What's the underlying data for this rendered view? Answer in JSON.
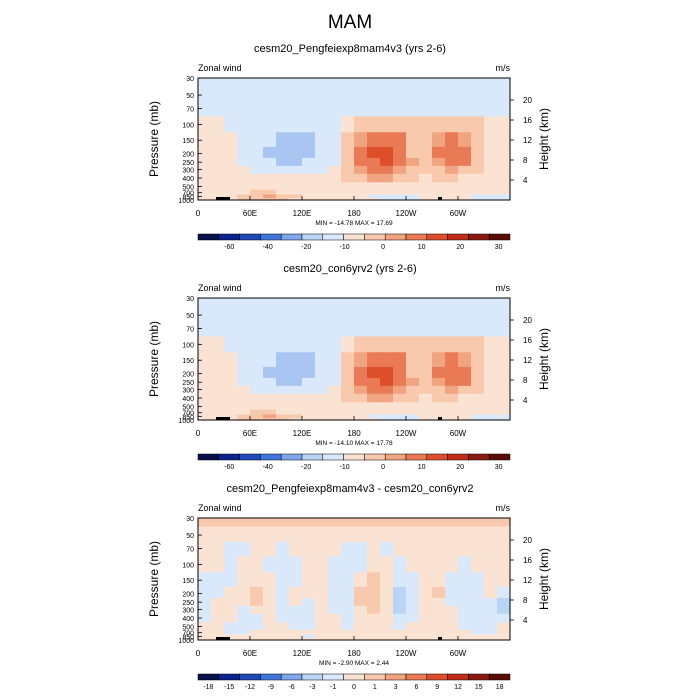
{
  "page_title": "MAM",
  "colors": {
    "palette": [
      "#08104a",
      "#0c238c",
      "#1f4bb8",
      "#3f76dc",
      "#7ea6ea",
      "#b9d4f5",
      "#d9e9fb",
      "#fbe3d3",
      "#f8c9ad",
      "#f0a47f",
      "#e97a55",
      "#df4e2b",
      "#bf2d17",
      "#8a1a0e",
      "#5a0c06"
    ]
  },
  "chart_data": [
    {
      "type": "heatmap",
      "title": "cesm20_Pengfeiexp8mam4v3 (yrs 2-6)",
      "left_label": "Zonal wind",
      "right_label": "m/s",
      "ylabel": "Pressure (mb)",
      "ylabel_right": "Height (km)",
      "x_ticks": [
        "0",
        "60E",
        "120E",
        "180",
        "120W",
        "60W"
      ],
      "y_ticks": [
        "30",
        "50",
        "70",
        "100",
        "150",
        "200",
        "250",
        "300",
        "400",
        "500",
        "700",
        "850",
        "1000"
      ],
      "height_ticks": [
        "20",
        "16",
        "12",
        "8",
        "4"
      ],
      "stats": "MIN = -14.78  MAX =  17.69",
      "colorbar_labels": [
        "-60",
        "-40",
        "-20",
        "-10",
        "0",
        "10",
        "20",
        "30"
      ],
      "field": [
        [
          -3,
          -3,
          -3,
          -3,
          -3,
          -3,
          -3,
          -3,
          -3,
          -3,
          -3,
          -3,
          -3,
          -3,
          -3,
          -3,
          -3,
          -3,
          -3,
          -3,
          -3,
          -3,
          -3,
          -3
        ],
        [
          -2,
          -2,
          -2,
          -2,
          -2,
          -2,
          -2,
          -2,
          -2,
          -2,
          -2,
          -2,
          -2,
          -2,
          -2,
          -2,
          -2,
          -2,
          -2,
          -2,
          -2,
          -2,
          -2,
          -2
        ],
        [
          -2,
          -2,
          -2,
          -2,
          -2,
          -2,
          -2,
          -2,
          -2,
          -2,
          -2,
          -2,
          -2,
          -2,
          -2,
          -2,
          -2,
          -2,
          -2,
          -2,
          -2,
          -2,
          -2,
          -2
        ],
        [
          2,
          2,
          -2,
          -2,
          -2,
          -2,
          -2,
          -3,
          -3,
          -3,
          -2,
          3,
          5,
          6,
          6,
          5,
          4,
          4,
          4,
          4,
          5,
          4,
          2,
          2
        ],
        [
          2,
          3,
          1,
          -2,
          -2,
          -4,
          -6,
          -6,
          -5,
          -3,
          -2,
          5,
          9,
          11,
          12,
          11,
          6,
          5,
          8,
          10,
          9,
          5,
          3,
          2
        ],
        [
          2,
          2,
          1,
          -2,
          -2,
          -5,
          -7,
          -7,
          -5,
          -3,
          -2,
          6,
          11,
          13,
          14,
          12,
          6,
          5,
          10,
          12,
          11,
          6,
          3,
          2
        ],
        [
          2,
          3,
          2,
          -2,
          -2,
          -4,
          -6,
          -5,
          -4,
          -3,
          -1,
          6,
          10,
          12,
          13,
          11,
          7,
          5,
          9,
          11,
          10,
          5,
          2,
          2
        ],
        [
          2,
          2,
          2,
          2,
          -1,
          -2,
          -3,
          -3,
          -2,
          -1,
          3,
          6,
          9,
          10,
          10,
          9,
          6,
          4,
          6,
          7,
          6,
          4,
          2,
          2
        ],
        [
          2,
          2,
          2,
          2,
          2,
          2,
          2,
          2,
          2,
          2,
          3,
          5,
          6,
          7,
          7,
          6,
          4,
          3,
          4,
          4,
          3,
          2,
          2,
          2
        ],
        [
          2,
          2,
          2,
          3,
          3,
          3,
          3,
          3,
          3,
          2,
          2,
          3,
          3,
          3,
          3,
          3,
          3,
          2,
          2,
          2,
          2,
          2,
          2,
          2
        ],
        [
          2,
          2,
          2,
          3,
          4,
          4,
          3,
          3,
          3,
          2,
          2,
          2,
          2,
          2,
          2,
          2,
          2,
          2,
          2,
          2,
          2,
          2,
          2,
          2
        ],
        [
          2,
          2,
          3,
          5,
          6,
          7,
          5,
          4,
          3,
          2,
          2,
          2,
          2,
          -2,
          -2,
          -2,
          -2,
          2,
          2,
          2,
          2,
          -2,
          -2,
          -2
        ],
        [
          3,
          3,
          3,
          4,
          6,
          6,
          5,
          3,
          2,
          2,
          2,
          2,
          2,
          2,
          -2,
          -2,
          -2,
          2,
          2,
          2,
          2,
          -2,
          -2,
          -2
        ]
      ]
    },
    {
      "type": "heatmap",
      "title": "cesm20_con6yrv2 (yrs 2-6)",
      "left_label": "Zonal wind",
      "right_label": "m/s",
      "ylabel": "Pressure (mb)",
      "ylabel_right": "Height (km)",
      "x_ticks": [
        "0",
        "60E",
        "120E",
        "180",
        "120W",
        "60W"
      ],
      "y_ticks": [
        "30",
        "50",
        "70",
        "100",
        "150",
        "200",
        "250",
        "300",
        "400",
        "500",
        "700",
        "850",
        "1000"
      ],
      "height_ticks": [
        "20",
        "16",
        "12",
        "8",
        "4"
      ],
      "stats": "MIN = -14.10  MAX =  17.78",
      "colorbar_labels": [
        "-60",
        "-40",
        "-20",
        "-10",
        "0",
        "10",
        "20",
        "30"
      ],
      "field": [
        [
          -3,
          -3,
          -3,
          -3,
          -3,
          -3,
          -3,
          -3,
          -3,
          -3,
          -3,
          -3,
          -3,
          -3,
          -3,
          -3,
          -3,
          -3,
          -3,
          -3,
          -3,
          -3,
          -3,
          -3
        ],
        [
          -2,
          -2,
          -2,
          -2,
          -2,
          -2,
          -2,
          -2,
          -2,
          -2,
          -2,
          -2,
          -2,
          -2,
          -2,
          -2,
          -2,
          -2,
          -2,
          -2,
          -2,
          -2,
          -2,
          -2
        ],
        [
          -2,
          -2,
          -2,
          -2,
          -2,
          -2,
          -2,
          -2,
          -2,
          -2,
          -2,
          -2,
          -2,
          -2,
          -2,
          -2,
          -2,
          -2,
          -2,
          -2,
          -2,
          -2,
          -2,
          -2
        ],
        [
          2,
          2,
          -2,
          -2,
          -2,
          -2,
          -2,
          -3,
          -3,
          -3,
          -2,
          3,
          5,
          6,
          6,
          5,
          4,
          4,
          4,
          4,
          5,
          4,
          2,
          2
        ],
        [
          2,
          3,
          1,
          -2,
          -2,
          -4,
          -6,
          -6,
          -5,
          -3,
          -2,
          5,
          9,
          11,
          12,
          11,
          6,
          5,
          8,
          10,
          9,
          5,
          3,
          2
        ],
        [
          2,
          2,
          1,
          -2,
          -2,
          -5,
          -7,
          -7,
          -5,
          -3,
          -2,
          6,
          11,
          14,
          15,
          12,
          6,
          5,
          10,
          12,
          11,
          6,
          3,
          2
        ],
        [
          2,
          3,
          2,
          -2,
          -2,
          -4,
          -6,
          -5,
          -4,
          -3,
          -1,
          6,
          10,
          12,
          13,
          11,
          7,
          5,
          9,
          11,
          10,
          5,
          2,
          2
        ],
        [
          2,
          2,
          2,
          2,
          -1,
          -2,
          -3,
          -3,
          -2,
          -1,
          3,
          6,
          9,
          10,
          10,
          9,
          6,
          4,
          6,
          7,
          6,
          4,
          2,
          2
        ],
        [
          2,
          2,
          2,
          2,
          2,
          2,
          2,
          2,
          2,
          2,
          3,
          5,
          6,
          7,
          7,
          6,
          4,
          3,
          4,
          4,
          3,
          2,
          2,
          2
        ],
        [
          2,
          2,
          2,
          3,
          3,
          3,
          3,
          3,
          3,
          2,
          2,
          3,
          3,
          3,
          3,
          3,
          3,
          2,
          2,
          2,
          2,
          2,
          2,
          2
        ],
        [
          2,
          2,
          2,
          3,
          4,
          4,
          3,
          3,
          3,
          2,
          2,
          2,
          2,
          2,
          2,
          2,
          2,
          2,
          2,
          2,
          2,
          2,
          2,
          2
        ],
        [
          2,
          2,
          3,
          5,
          6,
          7,
          5,
          4,
          3,
          2,
          2,
          2,
          2,
          -2,
          -2,
          -2,
          -2,
          2,
          2,
          2,
          2,
          -2,
          -2,
          -2
        ],
        [
          3,
          3,
          3,
          4,
          6,
          6,
          5,
          3,
          2,
          2,
          2,
          2,
          2,
          2,
          -2,
          -2,
          -2,
          2,
          2,
          2,
          2,
          -2,
          -2,
          -2
        ]
      ]
    },
    {
      "type": "heatmap",
      "title": "cesm20_Pengfeiexp8mam4v3 - cesm20_con6yrv2",
      "left_label": "Zonal wind",
      "right_label": "m/s",
      "ylabel": "Pressure (mb)",
      "ylabel_right": "Height (km)",
      "x_ticks": [
        "0",
        "60E",
        "120E",
        "180",
        "120W",
        "60W"
      ],
      "y_ticks": [
        "30",
        "50",
        "70",
        "100",
        "150",
        "200",
        "250",
        "300",
        "400",
        "500",
        "700",
        "850",
        "1000"
      ],
      "height_ticks": [
        "20",
        "16",
        "12",
        "8",
        "4"
      ],
      "stats": "MIN =  -2.90  MAX =   2.44",
      "colorbar_labels": [
        "-18",
        "-15",
        "-12",
        "-9",
        "-6",
        "-3",
        "-1",
        "0",
        "1",
        "3",
        "6",
        "9",
        "12",
        "15",
        "18"
      ],
      "field": [
        [
          1,
          1,
          1,
          1,
          1,
          1,
          1,
          1,
          1,
          1,
          1,
          1,
          1,
          1,
          1,
          1,
          1,
          1,
          1,
          1,
          1,
          1,
          1,
          1
        ],
        [
          0.4,
          0.4,
          0.4,
          0.4,
          0.4,
          0.4,
          0.4,
          0.4,
          0.4,
          0.4,
          0.4,
          0.4,
          0.4,
          0.4,
          0.4,
          0.4,
          0.4,
          0.4,
          0.4,
          0.4,
          0.4,
          0.4,
          0.4,
          0.4
        ],
        [
          0.4,
          0.4,
          -0.4,
          -0.4,
          0.4,
          0.4,
          -0.4,
          0.4,
          0.4,
          0.4,
          0.4,
          -0.4,
          -0.4,
          0.4,
          -0.4,
          0.4,
          0.4,
          0.4,
          0.4,
          0.4,
          0.4,
          0.4,
          0.4,
          0.4
        ],
        [
          0.4,
          0.4,
          -0.4,
          0.4,
          0.4,
          -0.4,
          -0.4,
          -0.4,
          0.4,
          0.4,
          -0.4,
          -0.4,
          -0.4,
          0.4,
          0.4,
          -0.4,
          0.4,
          0.4,
          0.4,
          0.4,
          -0.4,
          0.4,
          0.4,
          0.4
        ],
        [
          -0.4,
          -0.4,
          -0.4,
          0.4,
          0.4,
          0.4,
          -0.4,
          -0.4,
          0.4,
          0.4,
          -0.4,
          -0.4,
          0.4,
          1.2,
          0.4,
          -0.4,
          -0.4,
          0.4,
          0.4,
          -0.4,
          -0.4,
          -0.4,
          0.4,
          0.4
        ],
        [
          -0.4,
          -0.4,
          0.4,
          0.4,
          1.2,
          0.4,
          -0.4,
          0.4,
          0.4,
          0.4,
          -0.4,
          -0.4,
          1.2,
          1.5,
          0.4,
          -1.2,
          -0.4,
          0.4,
          1.2,
          -0.4,
          -0.4,
          -0.4,
          0.4,
          -0.4
        ],
        [
          -0.4,
          0.4,
          0.4,
          0.4,
          1.2,
          0.4,
          -0.4,
          0.4,
          -0.4,
          0.4,
          -0.4,
          -0.4,
          1.2,
          1.2,
          0.4,
          -1.2,
          -0.4,
          0.4,
          0.4,
          -0.4,
          -0.4,
          -0.4,
          -0.4,
          -1.2
        ],
        [
          -0.4,
          0.4,
          0.4,
          -0.4,
          0.4,
          0.4,
          -0.4,
          -0.4,
          -0.4,
          0.4,
          -0.4,
          -0.4,
          0.4,
          1.2,
          0.4,
          -1.2,
          -0.4,
          0.4,
          0.4,
          0.4,
          -0.4,
          -0.4,
          -0.4,
          -1.2
        ],
        [
          -0.4,
          0.4,
          0.4,
          -0.4,
          -0.4,
          0.4,
          -0.4,
          -0.4,
          -0.4,
          0.4,
          0.4,
          -0.4,
          0.4,
          0.4,
          0.4,
          -0.4,
          -0.4,
          0.4,
          0.4,
          0.4,
          -0.4,
          -0.4,
          -0.4,
          -0.4
        ],
        [
          0.4,
          0.4,
          -0.4,
          -0.4,
          -0.4,
          0.4,
          0.4,
          -0.4,
          -0.4,
          0.4,
          0.4,
          -0.4,
          0.4,
          0.4,
          0.4,
          -0.4,
          0.4,
          0.4,
          0.4,
          0.4,
          -0.4,
          -0.4,
          -0.4,
          0.4
        ],
        [
          0.4,
          0.4,
          -0.4,
          -0.4,
          0.4,
          0.4,
          0.4,
          0.4,
          0.4,
          0.4,
          0.4,
          0.4,
          0.4,
          0.4,
          0.4,
          0.4,
          0.4,
          0.4,
          0.4,
          0.4,
          0.4,
          -0.4,
          -0.4,
          0.4
        ],
        [
          0.4,
          0.4,
          0.4,
          0.4,
          0.4,
          0.4,
          0.4,
          0.4,
          -0.4,
          0.4,
          0.4,
          0.4,
          0.4,
          0.4,
          0.4,
          0.4,
          0.4,
          0.4,
          0.4,
          0.4,
          0.4,
          0.4,
          0.4,
          0.4
        ],
        [
          0.4,
          0.4,
          0.4,
          0.4,
          0.4,
          0.4,
          0.4,
          0.4,
          0.4,
          0.4,
          0.4,
          0.4,
          0.4,
          0.4,
          0.4,
          0.4,
          0.4,
          0.4,
          0.4,
          0.4,
          0.4,
          0.4,
          0.4,
          0.4
        ]
      ]
    }
  ]
}
